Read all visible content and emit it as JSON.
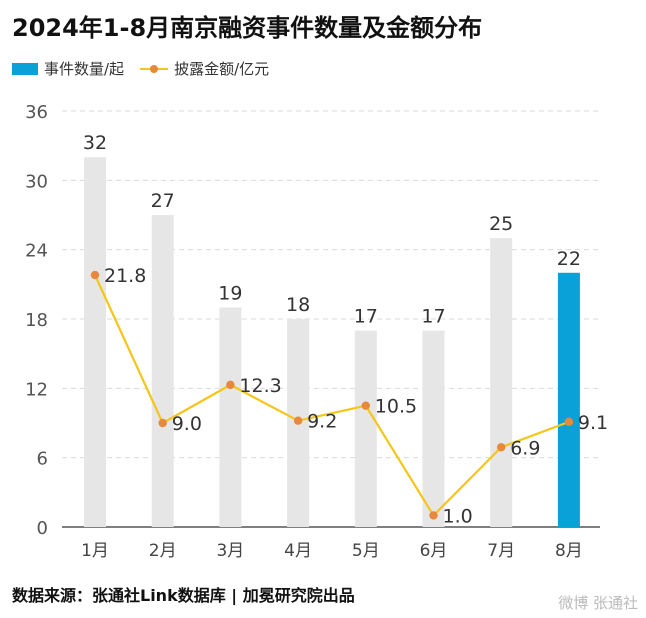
{
  "chart_data": {
    "type": "bar",
    "title": "2024年1-8月南京融资事件数量及金额分布",
    "categories": [
      "1月",
      "2月",
      "3月",
      "4月",
      "5月",
      "6月",
      "7月",
      "8月"
    ],
    "series": [
      {
        "name": "事件数量/起",
        "type": "bar",
        "values": [
          32,
          27,
          19,
          18,
          17,
          17,
          25,
          22
        ],
        "labels": [
          "32",
          "27",
          "19",
          "18",
          "17",
          "17",
          "25",
          "22"
        ]
      },
      {
        "name": "披露金额/亿元",
        "type": "line",
        "values": [
          21.8,
          9.0,
          12.3,
          9.2,
          10.5,
          1.0,
          6.9,
          9.1
        ],
        "labels": [
          "21.8",
          "9.0",
          "12.3",
          "9.2",
          "10.5",
          "1.0",
          "6.9",
          "9.1"
        ]
      }
    ],
    "yticks": [
      "0",
      "6",
      "12",
      "18",
      "24",
      "30",
      "36"
    ],
    "ylim": [
      0,
      36
    ],
    "highlight_index": 7,
    "colors": {
      "bar": "#e6e6e6",
      "bar_highlight": "#0aa0d8",
      "line": "#f5c518",
      "marker": "#e8883a",
      "grid": "#d9d9d9"
    }
  },
  "legend": {
    "bar_label": "事件数量/起",
    "line_label": "披露金额/亿元"
  },
  "source": "数据来源：张通社Link数据库 | 加冕研究院出品",
  "watermark": "微博 张通社"
}
